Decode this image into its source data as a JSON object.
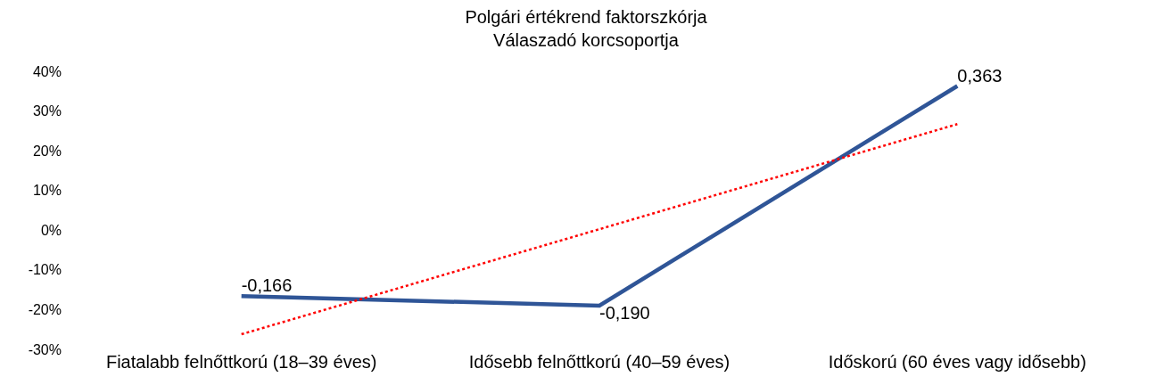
{
  "chart_data": {
    "type": "line",
    "title": "Polgári értékrend faktorszkórja",
    "subtitle": "Válaszadó korcsoportja",
    "categories": [
      "Fiatalabb felnőttkorú (18–39 éves)",
      "Idősebb felnőttkorú (40–59 éves)",
      "Időskorú (60 éves vagy idősebb)"
    ],
    "series": [
      {
        "color": "#2f5597",
        "values": [
          -0.166,
          -0.19,
          0.363
        ],
        "value_labels": [
          "-0,166",
          "-0,190",
          "0,363"
        ],
        "line_style": "solid"
      },
      {
        "type": "line",
        "color": "#ff0000",
        "x": [
          "Fiatalabb felnőttkorú (18–39 éves)",
          "Időskorú (60 éves vagy idősebb)"
        ],
        "values": [
          -0.262,
          0.267
        ],
        "line_style": "dotted"
      }
    ],
    "ylim": [
      -0.3,
      0.4
    ],
    "yticks": [
      {
        "value": -0.3,
        "label": "-30%"
      },
      {
        "value": -0.2,
        "label": "-20%"
      },
      {
        "value": -0.1,
        "label": "-10%"
      },
      {
        "value": 0,
        "label": "0%"
      },
      {
        "value": 0.1,
        "label": "10%"
      },
      {
        "value": 0.2,
        "label": "20%"
      },
      {
        "value": 0.3,
        "label": "30%"
      },
      {
        "value": 0.4,
        "label": "40%"
      }
    ],
    "marker": "none"
  }
}
